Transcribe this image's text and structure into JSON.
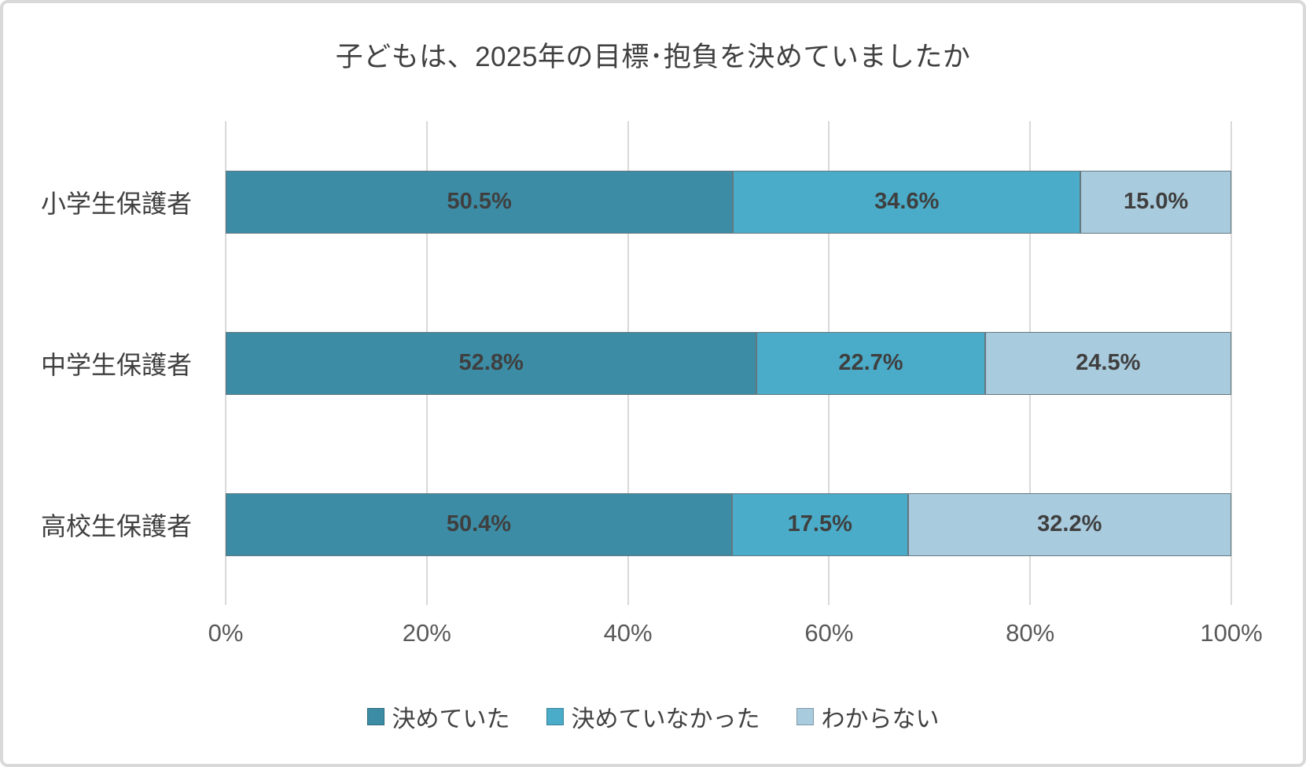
{
  "chart_data": {
    "type": "bar",
    "orientation": "horizontal",
    "stacked": true,
    "normalized_to_100pct": true,
    "title": "子どもは、2025年の目標･抱負を決めていましたか",
    "categories": [
      "小学生保護者",
      "中学生保護者",
      "高校生保護者"
    ],
    "series": [
      {
        "name": "決めていた",
        "color": "#3c8ca5",
        "values": [
          50.5,
          52.8,
          50.4
        ]
      },
      {
        "name": "決めていなかった",
        "color": "#4aacc8",
        "values": [
          34.6,
          22.7,
          17.5
        ]
      },
      {
        "name": "わからない",
        "color": "#a9cbde",
        "values": [
          15.0,
          24.5,
          32.2
        ]
      }
    ],
    "data_labels": [
      [
        "50.5%",
        "34.6%",
        "15.0%"
      ],
      [
        "52.8%",
        "22.7%",
        "24.5%"
      ],
      [
        "50.4%",
        "17.5%",
        "32.2%"
      ]
    ],
    "x_ticks": [
      "0%",
      "20%",
      "40%",
      "60%",
      "80%",
      "100%"
    ],
    "xlim": [
      0,
      100
    ],
    "grid": true,
    "legend_position": "bottom",
    "colors": {
      "title_text": "#404040",
      "category_text": "#404040",
      "data_label_text": "#3f3f3f",
      "tick_text": "#595959",
      "gridline": "#d9d9d9",
      "card_border": "#d9d9d9",
      "segment_border": "#64787f",
      "background": "#ffffff"
    }
  }
}
